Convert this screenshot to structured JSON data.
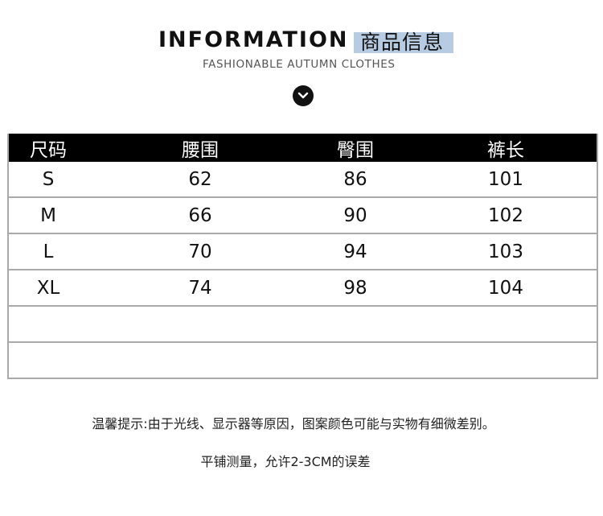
{
  "header": {
    "title": "INFORMATION",
    "title_cn": "商品信息",
    "subtitle": "FASHIONABLE AUTUMN CLOTHES",
    "icon": "chevron-down-circle-icon",
    "accent_color": "#b7cbe3"
  },
  "table": {
    "columns": [
      "尺码",
      "腰围",
      "臀围",
      "裤长"
    ],
    "rows": [
      [
        "S",
        "62",
        "86",
        "101"
      ],
      [
        "M",
        "66",
        "90",
        "102"
      ],
      [
        "L",
        "70",
        "94",
        "103"
      ],
      [
        "XL",
        "74",
        "98",
        "104"
      ],
      [
        "",
        "",
        "",
        ""
      ],
      [
        "",
        "",
        "",
        ""
      ]
    ]
  },
  "notes": {
    "line1": "温馨提示:由于光线、显示器等原因，图案颜色可能与实物有细微差别。",
    "line2": "平铺测量，允许2-3CM的误差"
  }
}
